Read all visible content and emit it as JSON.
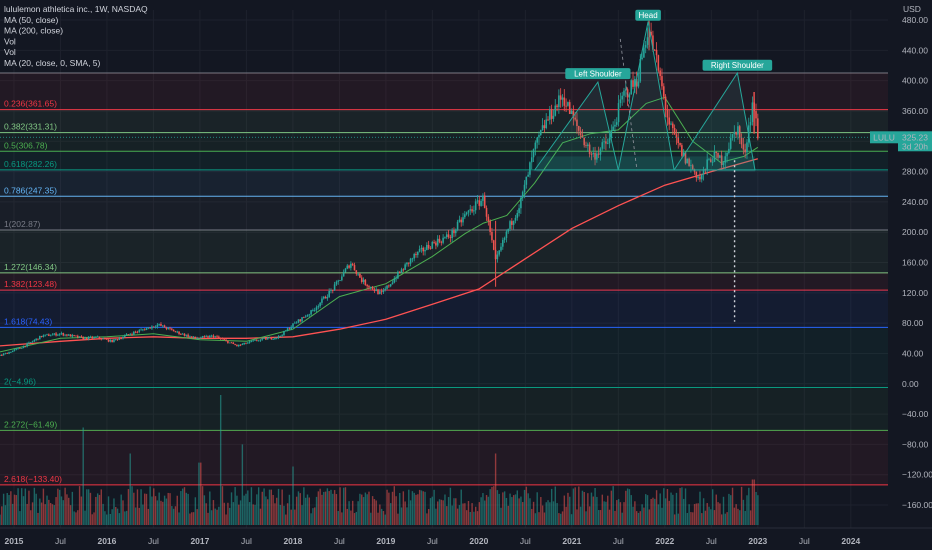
{
  "chart_data": {
    "type": "candlestick",
    "legend": [
      "lululemon athletica inc., 1W, NASDAQ",
      "MA (50, close)",
      "MA (200, close)",
      "Vol",
      "Vol",
      "MA (20, close, 0, SMA, 5)"
    ],
    "currency": "USD",
    "ylim": [
      -175,
      500
    ],
    "y_ticks": [
      480,
      440,
      400,
      360,
      320,
      280,
      240,
      200,
      160,
      120,
      80,
      40,
      0,
      -40,
      -80,
      -120,
      -160
    ],
    "y_tick_labels": [
      "480.00",
      "440.00",
      "400.00",
      "360.00",
      "320.00",
      "280.00",
      "240.00",
      "200.00",
      "160.00",
      "120.00",
      "80.00",
      "40.00",
      "0.00",
      "−40.00",
      "−80.00",
      "−120.00",
      "−160.00"
    ],
    "xlim": [
      2014.85,
      2024.4
    ],
    "x_ticks": [
      {
        "label": "2015",
        "x": 2015.0
      },
      {
        "label": "Jul",
        "x": 2015.5
      },
      {
        "label": "2016",
        "x": 2016.0
      },
      {
        "label": "Jul",
        "x": 2016.5
      },
      {
        "label": "2017",
        "x": 2017.0
      },
      {
        "label": "Jul",
        "x": 2017.5
      },
      {
        "label": "2018",
        "x": 2018.0
      },
      {
        "label": "Jul",
        "x": 2018.5
      },
      {
        "label": "2019",
        "x": 2019.0
      },
      {
        "label": "Jul",
        "x": 2019.5
      },
      {
        "label": "2020",
        "x": 2020.0
      },
      {
        "label": "Jul",
        "x": 2020.5
      },
      {
        "label": "2021",
        "x": 2021.0
      },
      {
        "label": "Jul",
        "x": 2021.5
      },
      {
        "label": "2022",
        "x": 2022.0
      },
      {
        "label": "Jul",
        "x": 2022.5
      },
      {
        "label": "2023",
        "x": 2023.0
      },
      {
        "label": "Jul",
        "x": 2023.5
      },
      {
        "label": "2024",
        "x": 2024.0
      }
    ],
    "fib_levels": [
      {
        "label": "0.236(361.65)",
        "value": 361.65,
        "color": "#f23645"
      },
      {
        "label": "0.382(331.31)",
        "value": 331.31,
        "color": "#81c784"
      },
      {
        "label": "0.5(306.78)",
        "value": 306.78,
        "color": "#4caf50"
      },
      {
        "label": "0.618(282.26)",
        "value": 282.26,
        "color": "#089981"
      },
      {
        "label": "0.786(247.35)",
        "value": 247.35,
        "color": "#64b5f6"
      },
      {
        "label": "1(202.87)",
        "value": 202.87,
        "color": "#787b86"
      },
      {
        "label": "1.272(146.34)",
        "value": 146.34,
        "color": "#81c784"
      },
      {
        "label": "1.382(123.48)",
        "value": 123.48,
        "color": "#f23645"
      },
      {
        "label": "1.618(74.43)",
        "value": 74.43,
        "color": "#2962ff"
      },
      {
        "label": "2(−4.96)",
        "value": -4.96,
        "color": "#089981"
      },
      {
        "label": "2.272(−61.49)",
        "value": -61.49,
        "color": "#4caf50"
      },
      {
        "label": "2.618(−133.40)",
        "value": -133.4,
        "color": "#f23645"
      }
    ],
    "fib_top_value": 410,
    "price_anchors": [
      [
        2014.85,
        37
      ],
      [
        2015.1,
        49
      ],
      [
        2015.3,
        63
      ],
      [
        2015.5,
        66
      ],
      [
        2015.75,
        60
      ],
      [
        2015.9,
        61
      ],
      [
        2016.05,
        56
      ],
      [
        2016.25,
        66
      ],
      [
        2016.55,
        78
      ],
      [
        2016.75,
        68
      ],
      [
        2016.95,
        60
      ],
      [
        2017.15,
        63
      ],
      [
        2017.4,
        50
      ],
      [
        2017.6,
        57
      ],
      [
        2017.85,
        62
      ],
      [
        2018.0,
        78
      ],
      [
        2018.2,
        95
      ],
      [
        2018.45,
        128
      ],
      [
        2018.62,
        160
      ],
      [
        2018.75,
        135
      ],
      [
        2018.95,
        118
      ],
      [
        2019.1,
        140
      ],
      [
        2019.3,
        168
      ],
      [
        2019.5,
        185
      ],
      [
        2019.7,
        196
      ],
      [
        2019.85,
        222
      ],
      [
        2020.05,
        245
      ],
      [
        2020.18,
        160
      ],
      [
        2020.3,
        200
      ],
      [
        2020.45,
        240
      ],
      [
        2020.6,
        310
      ],
      [
        2020.72,
        345
      ],
      [
        2020.9,
        380
      ],
      [
        2021.05,
        340
      ],
      [
        2021.22,
        300
      ],
      [
        2021.4,
        320
      ],
      [
        2021.55,
        380
      ],
      [
        2021.7,
        400
      ],
      [
        2021.82,
        470
      ],
      [
        2021.92,
        420
      ],
      [
        2022.05,
        340
      ],
      [
        2022.2,
        300
      ],
      [
        2022.38,
        270
      ],
      [
        2022.5,
        300
      ],
      [
        2022.62,
        295
      ],
      [
        2022.78,
        340
      ],
      [
        2022.85,
        300
      ],
      [
        2022.95,
        375
      ],
      [
        2023.0,
        325
      ]
    ],
    "ma50": [
      [
        2014.85,
        42
      ],
      [
        2015.5,
        60
      ],
      [
        2016.0,
        62
      ],
      [
        2016.5,
        66
      ],
      [
        2017.0,
        58
      ],
      [
        2017.5,
        56
      ],
      [
        2018.0,
        72
      ],
      [
        2018.5,
        115
      ],
      [
        2019.0,
        132
      ],
      [
        2019.5,
        168
      ],
      [
        2019.85,
        198
      ],
      [
        2020.05,
        212
      ],
      [
        2020.3,
        222
      ],
      [
        2020.6,
        265
      ],
      [
        2020.9,
        318
      ],
      [
        2021.2,
        330
      ],
      [
        2021.5,
        335
      ],
      [
        2021.8,
        370
      ],
      [
        2022.0,
        378
      ],
      [
        2022.3,
        320
      ],
      [
        2022.6,
        292
      ],
      [
        2022.85,
        300
      ],
      [
        2023.0,
        312
      ]
    ],
    "ma200": [
      [
        2014.85,
        50
      ],
      [
        2015.5,
        56
      ],
      [
        2016.0,
        60
      ],
      [
        2016.5,
        62
      ],
      [
        2017.0,
        60
      ],
      [
        2017.5,
        60
      ],
      [
        2018.0,
        62
      ],
      [
        2018.5,
        72
      ],
      [
        2019.0,
        85
      ],
      [
        2019.5,
        105
      ],
      [
        2020.0,
        125
      ],
      [
        2020.5,
        165
      ],
      [
        2021.0,
        205
      ],
      [
        2021.5,
        235
      ],
      [
        2022.0,
        262
      ],
      [
        2022.5,
        280
      ],
      [
        2023.0,
        297
      ]
    ],
    "volume_max": 1.0,
    "volume_spikes": [
      {
        "x": 2015.75,
        "v": 0.75
      },
      {
        "x": 2016.25,
        "v": 0.55
      },
      {
        "x": 2017.0,
        "v": 0.48
      },
      {
        "x": 2017.22,
        "v": 1.0
      },
      {
        "x": 2017.45,
        "v": 0.62
      },
      {
        "x": 2018.0,
        "v": 0.45
      },
      {
        "x": 2020.18,
        "v": 0.55
      },
      {
        "x": 2022.95,
        "v": 0.35
      }
    ],
    "annotations": [
      {
        "label": "Head",
        "x": 2021.82,
        "y": 483
      },
      {
        "label": "Left Shoulder",
        "x": 2021.28,
        "y": 406
      },
      {
        "label": "Right Shoulder",
        "x": 2022.78,
        "y": 417
      }
    ],
    "last_price": {
      "ticker": "LULU",
      "value": "325.23",
      "countdown": "3d 20h",
      "y": 325.23
    }
  },
  "colors": {
    "up": "#26a69a",
    "down": "#ef5350",
    "ma50": "#4caf50",
    "ma200": "#ff5252",
    "badge": "#26a69a"
  }
}
